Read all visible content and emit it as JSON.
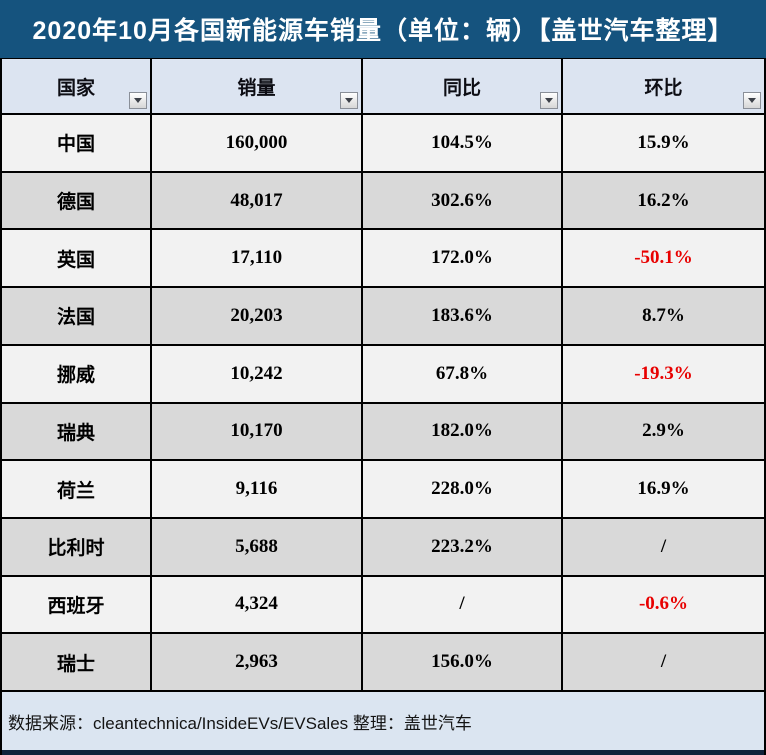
{
  "title": "2020年10月各国新能源车销量（单位：辆）【盖世汽车整理】",
  "colors": {
    "title_bar": "#15537E",
    "header_bg": "#DCE4F1",
    "row_light": "#F2F2F2",
    "row_dark": "#D9D9D9",
    "footer_bg": "#DBE5F1",
    "negative_text": "#E80000",
    "border": "#000000"
  },
  "icons": {
    "filter": "chevron-down-icon"
  },
  "table": {
    "columns": [
      {
        "label": "国家"
      },
      {
        "label": "销量"
      },
      {
        "label": "同比"
      },
      {
        "label": "环比"
      }
    ],
    "rows": [
      {
        "country": "中国",
        "sales": "160,000",
        "yoy": "104.5%",
        "mom": "15.9%"
      },
      {
        "country": "德国",
        "sales": "48,017",
        "yoy": "302.6%",
        "mom": "16.2%"
      },
      {
        "country": "英国",
        "sales": "17,110",
        "yoy": "172.0%",
        "mom": "-50.1%"
      },
      {
        "country": "法国",
        "sales": "20,203",
        "yoy": "183.6%",
        "mom": "8.7%"
      },
      {
        "country": "挪威",
        "sales": "10,242",
        "yoy": "67.8%",
        "mom": "-19.3%"
      },
      {
        "country": "瑞典",
        "sales": "10,170",
        "yoy": "182.0%",
        "mom": "2.9%"
      },
      {
        "country": "荷兰",
        "sales": "9,116",
        "yoy": "228.0%",
        "mom": "16.9%"
      },
      {
        "country": "比利时",
        "sales": "5,688",
        "yoy": "223.2%",
        "mom": "/"
      },
      {
        "country": "西班牙",
        "sales": "4,324",
        "yoy": "/",
        "mom": "-0.6%"
      },
      {
        "country": "瑞士",
        "sales": "2,963",
        "yoy": "156.0%",
        "mom": "/"
      }
    ]
  },
  "footer": {
    "text": "数据来源：cleantechnica/InsideEVs/EVSales 整理：盖世汽车"
  }
}
